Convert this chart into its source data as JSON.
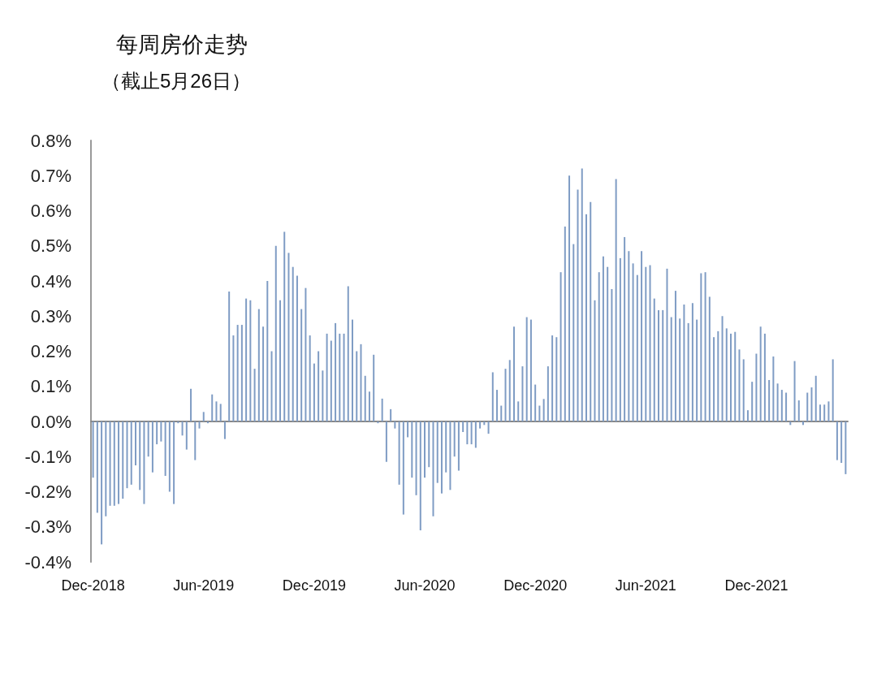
{
  "chart_data": {
    "type": "bar",
    "title": "每周房价走势",
    "subtitle": "（截止5月26日）",
    "categories": [
      "Dec-2018",
      null,
      null,
      null,
      null,
      null,
      null,
      null,
      null,
      null,
      null,
      null,
      null,
      null,
      null,
      null,
      null,
      null,
      null,
      null,
      null,
      null,
      null,
      null,
      null,
      null,
      "Jun-2019",
      null,
      null,
      null,
      null,
      null,
      null,
      null,
      null,
      null,
      null,
      null,
      null,
      null,
      null,
      null,
      null,
      null,
      null,
      null,
      null,
      null,
      null,
      null,
      null,
      null,
      "Dec-2019",
      null,
      null,
      null,
      null,
      null,
      null,
      null,
      null,
      null,
      null,
      null,
      null,
      null,
      null,
      null,
      null,
      null,
      null,
      null,
      null,
      null,
      null,
      null,
      null,
      null,
      "Jun-2020",
      null,
      null,
      null,
      null,
      null,
      null,
      null,
      null,
      null,
      null,
      null,
      null,
      null,
      null,
      null,
      null,
      null,
      null,
      null,
      null,
      null,
      null,
      null,
      null,
      null,
      "Dec-2020",
      null,
      null,
      null,
      null,
      null,
      null,
      null,
      null,
      null,
      null,
      null,
      null,
      null,
      null,
      null,
      null,
      null,
      null,
      null,
      null,
      null,
      null,
      null,
      null,
      null,
      "Jun-2021",
      null,
      null,
      null,
      null,
      null,
      null,
      null,
      null,
      null,
      null,
      null,
      null,
      null,
      null,
      null,
      null,
      null,
      null,
      null,
      null,
      null,
      null,
      null,
      null,
      null,
      "Dec-2021",
      null,
      null,
      null,
      null,
      null,
      null,
      null,
      null,
      null,
      null,
      null,
      null,
      null,
      null,
      null,
      null,
      null,
      null,
      null,
      null,
      null
    ],
    "values": [
      -0.16,
      -0.26,
      -0.35,
      -0.27,
      -0.24,
      -0.24,
      -0.235,
      -0.22,
      -0.19,
      -0.18,
      -0.125,
      -0.195,
      -0.235,
      -0.1,
      -0.145,
      -0.065,
      -0.057,
      -0.155,
      -0.2,
      -0.235,
      -0.005,
      -0.04,
      -0.08,
      0.093,
      -0.11,
      -0.02,
      0.027,
      -0.005,
      0.077,
      0.057,
      0.05,
      -0.05,
      0.37,
      0.245,
      0.275,
      0.275,
      0.35,
      0.345,
      0.15,
      0.32,
      0.27,
      0.4,
      0.2,
      0.5,
      0.345,
      0.54,
      0.48,
      0.44,
      0.415,
      0.32,
      0.38,
      0.245,
      0.165,
      0.2,
      0.145,
      0.25,
      0.23,
      0.28,
      0.25,
      0.25,
      0.385,
      0.29,
      0.2,
      0.22,
      0.13,
      0.085,
      0.19,
      -0.005,
      0.065,
      -0.115,
      0.035,
      -0.02,
      -0.18,
      -0.265,
      -0.045,
      -0.16,
      -0.21,
      -0.31,
      -0.16,
      -0.13,
      -0.27,
      -0.175,
      -0.205,
      -0.145,
      -0.195,
      -0.1,
      -0.14,
      -0.03,
      -0.065,
      -0.065,
      -0.075,
      -0.02,
      -0.01,
      -0.035,
      0.14,
      0.09,
      0.045,
      0.15,
      0.175,
      0.27,
      0.057,
      0.157,
      0.297,
      0.29,
      0.105,
      0.045,
      0.064,
      0.157,
      0.245,
      0.24,
      0.425,
      0.555,
      0.7,
      0.505,
      0.66,
      0.72,
      0.59,
      0.625,
      0.345,
      0.425,
      0.47,
      0.44,
      0.377,
      0.69,
      0.465,
      0.525,
      0.485,
      0.45,
      0.417,
      0.485,
      0.44,
      0.445,
      0.35,
      0.317,
      0.317,
      0.435,
      0.297,
      0.372,
      0.293,
      0.333,
      0.28,
      0.337,
      0.29,
      0.422,
      0.425,
      0.355,
      0.24,
      0.257,
      0.3,
      0.265,
      0.25,
      0.255,
      0.205,
      0.177,
      0.032,
      0.113,
      0.193,
      0.27,
      0.25,
      0.118,
      0.185,
      0.108,
      0.09,
      0.082,
      -0.01,
      0.172,
      0.06,
      -0.01,
      0.082,
      0.097,
      0.13,
      0.048,
      0.048,
      0.057,
      0.177,
      -0.11,
      -0.118,
      -0.15
    ],
    "color": "#7f9cc4",
    "ylim": [
      -0.4,
      0.8
    ],
    "yticks": [
      {
        "value": -0.4,
        "label": "-0.4%"
      },
      {
        "value": -0.3,
        "label": "-0.3%"
      },
      {
        "value": -0.2,
        "label": "-0.2%"
      },
      {
        "value": -0.1,
        "label": "-0.1%"
      },
      {
        "value": 0,
        "label": "0.0%"
      },
      {
        "value": 0.1,
        "label": "0.1%"
      },
      {
        "value": 0.2,
        "label": "0.2%"
      },
      {
        "value": 0.3,
        "label": "0.3%"
      },
      {
        "value": 0.4,
        "label": "0.4%"
      },
      {
        "value": 0.5,
        "label": "0.5%"
      },
      {
        "value": 0.6,
        "label": "0.6%"
      },
      {
        "value": 0.7,
        "label": "0.7%"
      },
      {
        "value": 0.8,
        "label": "0.8%"
      }
    ]
  }
}
